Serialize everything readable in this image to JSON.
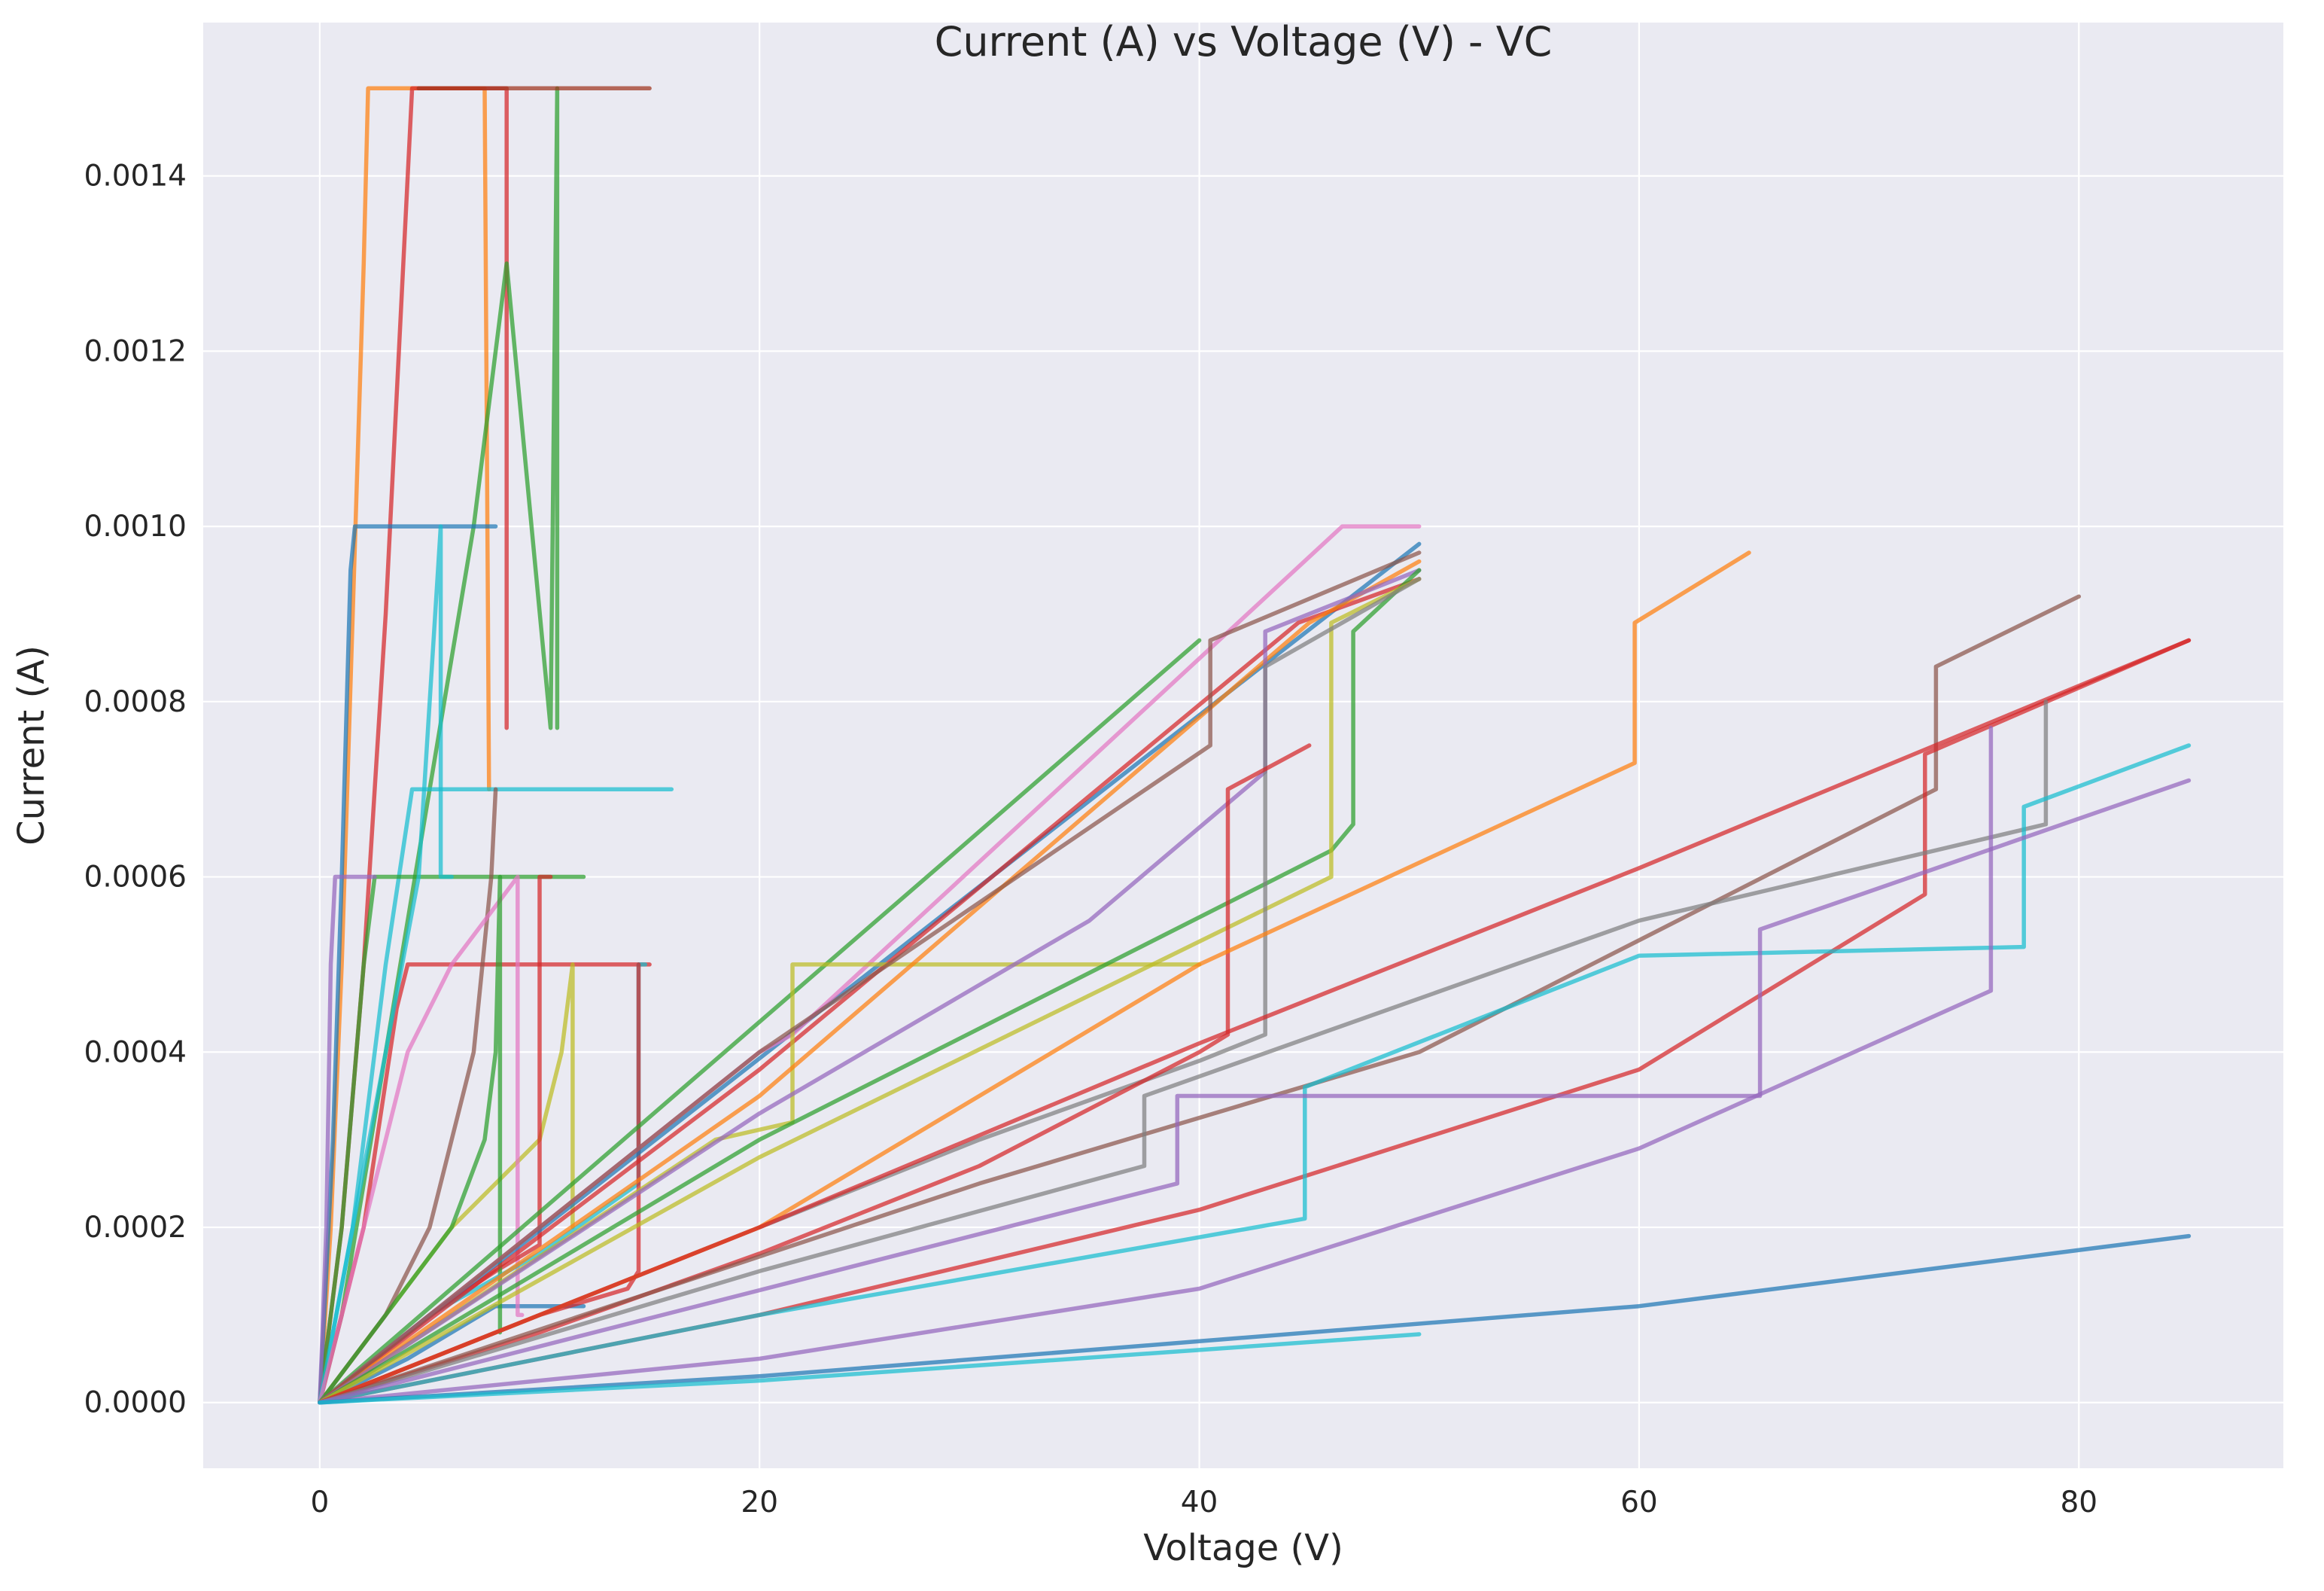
{
  "chart_data": {
    "type": "line",
    "title": "Current (A) vs Voltage (V) - VC",
    "xlabel": "Voltage (V)",
    "ylabel": "Current (A)",
    "xlim": [
      -5.3,
      89.3
    ],
    "ylim": [
      -7.5e-05,
      0.001575
    ],
    "xticks": [
      0,
      20,
      40,
      60,
      80
    ],
    "xtick_labels": [
      "0",
      "20",
      "40",
      "60",
      "80"
    ],
    "yticks": [
      0,
      0.0002,
      0.0004,
      0.0006,
      0.0008,
      0.001,
      0.0012,
      0.0014
    ],
    "ytick_labels": [
      "0.0000",
      "0.0002",
      "0.0004",
      "0.0006",
      "0.0008",
      "0.0010",
      "0.0012",
      "0.0014"
    ],
    "grid": true,
    "legend": false,
    "background_color": "#eaeaf2",
    "grid_color": "#ffffff",
    "series": [
      {
        "color": "#ff7f0e",
        "x": [
          0,
          0.5,
          1,
          1.5,
          2,
          2.2,
          2.6,
          7.5,
          7.7,
          7.7
        ],
        "y": [
          0,
          0.0002,
          0.0005,
          0.0009,
          0.0013,
          0.0015,
          0.0015,
          0.0015,
          0.0007,
          0.0007
        ]
      },
      {
        "color": "#d62728",
        "x": [
          0,
          1,
          2,
          3,
          3.8,
          4.2,
          8.5,
          8.5
        ],
        "y": [
          0,
          0.0002,
          0.0005,
          0.0009,
          0.0013,
          0.0015,
          0.0015,
          0.00077
        ]
      },
      {
        "color": "#2ca02c",
        "x": [
          0,
          1,
          3,
          5,
          7,
          8.5,
          10.5,
          10.8,
          10.8
        ],
        "y": [
          0,
          0.0001,
          0.0004,
          0.0007,
          0.001,
          0.0013,
          0.00077,
          0.0015,
          0.00077
        ]
      },
      {
        "color": "#a0341d",
        "x": [
          4.5,
          15
        ],
        "y": [
          0.0015,
          0.0015
        ]
      },
      {
        "color": "#1f77b4",
        "x": [
          0,
          0.6,
          1,
          1.4,
          1.6,
          8
        ],
        "y": [
          0,
          0.0003,
          0.0006,
          0.00095,
          0.001,
          0.001
        ]
      },
      {
        "color": "#17becf",
        "x": [
          0,
          1.5,
          3,
          4.2,
          16
        ],
        "y": [
          0,
          0.0002,
          0.0005,
          0.0007,
          0.0007
        ]
      },
      {
        "color": "#2ca02c",
        "x": [
          0,
          1,
          2,
          2.5,
          12
        ],
        "y": [
          0,
          0.0002,
          0.0005,
          0.0006,
          0.0006
        ]
      },
      {
        "color": "#d62728",
        "x": [
          0,
          2,
          3.5,
          4,
          15
        ],
        "y": [
          0,
          0.0002,
          0.00045,
          0.0005,
          0.0005
        ]
      },
      {
        "color": "#9467bd",
        "x": [
          0,
          0.3,
          0.5,
          0.7,
          2.5
        ],
        "y": [
          0,
          0.0002,
          0.0005,
          0.0006,
          0.0006
        ]
      },
      {
        "color": "#bcbd22",
        "x": [
          0,
          3,
          6,
          8,
          10,
          11,
          11.5,
          11.5
        ],
        "y": [
          0,
          0.0001,
          0.0002,
          0.00025,
          0.0003,
          0.0004,
          0.0005,
          0.0002
        ]
      },
      {
        "color": "#17becf",
        "x": [
          0,
          1.5,
          3,
          4.5,
          5.5,
          5.5,
          6
        ],
        "y": [
          0,
          0.0002,
          0.0004,
          0.0006,
          0.001,
          0.0006,
          0.0006
        ]
      },
      {
        "color": "#8c564b",
        "x": [
          0,
          3,
          5,
          7,
          7.8,
          8
        ],
        "y": [
          0,
          0.0001,
          0.0002,
          0.0004,
          0.0006,
          0.0007
        ]
      },
      {
        "color": "#1f77b4",
        "x": [
          0,
          4,
          8,
          12
        ],
        "y": [
          0,
          5e-05,
          0.00011,
          0.00011
        ]
      },
      {
        "color": "#e377c2",
        "x": [
          0,
          2,
          4,
          6,
          9,
          9,
          9.2
        ],
        "y": [
          0,
          0.0002,
          0.0004,
          0.0005,
          0.0006,
          0.0001,
          0.0001
        ]
      },
      {
        "color": "#d62728",
        "x": [
          0,
          5,
          8,
          10,
          10,
          10.5
        ],
        "y": [
          0,
          0.0001,
          0.00015,
          0.00018,
          0.0006,
          0.0006
        ]
      },
      {
        "color": "#2ca02c",
        "x": [
          0,
          3,
          6,
          7.5,
          8,
          8.2,
          8.2
        ],
        "y": [
          0,
          0.0001,
          0.0002,
          0.0003,
          0.0004,
          0.0006,
          8e-05
        ]
      },
      {
        "color": "#17becf",
        "x": [
          0,
          5,
          10,
          14.5,
          14.5,
          14.8
        ],
        "y": [
          0,
          0.0001,
          0.00017,
          0.00025,
          0.0005,
          0.0005
        ]
      },
      {
        "color": "#d62728",
        "x": [
          0,
          5,
          10,
          14,
          14.5,
          14.5
        ],
        "y": [
          0,
          5e-05,
          0.0001,
          0.00013,
          0.00015,
          0.0005
        ]
      },
      {
        "color": "#1f77b4",
        "x": [
          0,
          28,
          50
        ],
        "y": [
          0,
          0.00055,
          0.00098
        ]
      },
      {
        "color": "#2ca02c",
        "x": [
          0,
          29,
          40
        ],
        "y": [
          0,
          0.00063,
          0.00087
        ]
      },
      {
        "color": "#e377c2",
        "x": [
          0,
          20,
          21.5,
          46.5,
          50
        ],
        "y": [
          0,
          0.0004,
          0.00042,
          0.001,
          0.001
        ]
      },
      {
        "color": "#d62728",
        "x": [
          0,
          20,
          44.5,
          50
        ],
        "y": [
          0,
          0.00038,
          0.00089,
          0.00094
        ]
      },
      {
        "color": "#bcbd22",
        "x": [
          0,
          18,
          21.5,
          21.5,
          40
        ],
        "y": [
          0,
          0.0003,
          0.00032,
          0.0005,
          0.0005
        ]
      },
      {
        "color": "#ff7f0e",
        "x": [
          0,
          20,
          45,
          50
        ],
        "y": [
          0,
          0.00035,
          0.00089,
          0.00096
        ]
      },
      {
        "color": "#8c564b",
        "x": [
          0,
          20,
          40.5,
          40.5,
          50
        ],
        "y": [
          0,
          0.0004,
          0.00075,
          0.00087,
          0.00097
        ]
      },
      {
        "color": "#9467bd",
        "x": [
          0,
          20,
          35,
          43,
          43,
          50
        ],
        "y": [
          0,
          0.00033,
          0.00055,
          0.00072,
          0.00088,
          0.00095
        ]
      },
      {
        "color": "#2ca02c",
        "x": [
          0,
          20,
          46,
          47,
          47,
          50
        ],
        "y": [
          0,
          0.0003,
          0.00063,
          0.00066,
          0.00088,
          0.00095
        ]
      },
      {
        "color": "#bcbd22",
        "x": [
          0,
          20,
          46,
          46,
          50
        ],
        "y": [
          0,
          0.00028,
          0.0006,
          0.00089,
          0.00094
        ]
      },
      {
        "color": "#7f7f7f",
        "x": [
          0,
          10,
          20,
          30,
          40,
          43,
          43,
          50
        ],
        "y": [
          0,
          0.0001,
          0.0002,
          0.0003,
          0.00039,
          0.00042,
          0.00084,
          0.00094
        ]
      },
      {
        "color": "#d62728",
        "x": [
          0,
          10,
          20,
          30,
          40,
          41.3,
          41.3,
          45
        ],
        "y": [
          0,
          8e-05,
          0.00017,
          0.00027,
          0.0004,
          0.00042,
          0.0007,
          0.00075
        ]
      },
      {
        "color": "#ff7f0e",
        "x": [
          0,
          20,
          40,
          59.8,
          59.8,
          65
        ],
        "y": [
          0,
          0.0002,
          0.0005,
          0.00073,
          0.00089,
          0.00097
        ]
      },
      {
        "color": "#8c564b",
        "x": [
          0,
          30,
          50,
          73.5,
          73.5,
          80
        ],
        "y": [
          0,
          0.00025,
          0.0004,
          0.0007,
          0.00084,
          0.00092
        ]
      },
      {
        "color": "#d62728",
        "x": [
          0,
          20,
          40,
          60,
          85
        ],
        "y": [
          0,
          0.0002,
          0.00041,
          0.00061,
          0.00087
        ]
      },
      {
        "color": "#d62728",
        "x": [
          0,
          20,
          40,
          60,
          73,
          73,
          85
        ],
        "y": [
          0,
          0.0001,
          0.00022,
          0.00038,
          0.00058,
          0.00074,
          0.00087
        ]
      },
      {
        "color": "#7f7f7f",
        "x": [
          0,
          20,
          37.5,
          37.5,
          60,
          78.5,
          78.5
        ],
        "y": [
          0,
          0.00015,
          0.00027,
          0.00035,
          0.00055,
          0.00066,
          0.0008
        ]
      },
      {
        "color": "#17becf",
        "x": [
          0,
          20,
          44.8,
          44.8,
          60,
          77.5,
          77.5,
          85
        ],
        "y": [
          0,
          0.0001,
          0.00021,
          0.00036,
          0.00051,
          0.00052,
          0.00068,
          0.00075
        ]
      },
      {
        "color": "#9467bd",
        "x": [
          0,
          20,
          40,
          60,
          76,
          76
        ],
        "y": [
          0,
          5e-05,
          0.00013,
          0.00029,
          0.00047,
          0.00077
        ]
      },
      {
        "color": "#9467bd",
        "x": [
          0,
          39,
          39,
          65.5,
          65.5,
          85
        ],
        "y": [
          0,
          0.00025,
          0.00035,
          0.00035,
          0.00054,
          0.00071
        ]
      },
      {
        "color": "#1f77b4",
        "x": [
          0,
          20,
          40,
          60,
          85
        ],
        "y": [
          0,
          3e-05,
          7e-05,
          0.00011,
          0.00019
        ]
      },
      {
        "color": "#17becf",
        "x": [
          0,
          20,
          40,
          50
        ],
        "y": [
          0,
          2.5e-05,
          6e-05,
          7.8e-05
        ]
      }
    ]
  }
}
